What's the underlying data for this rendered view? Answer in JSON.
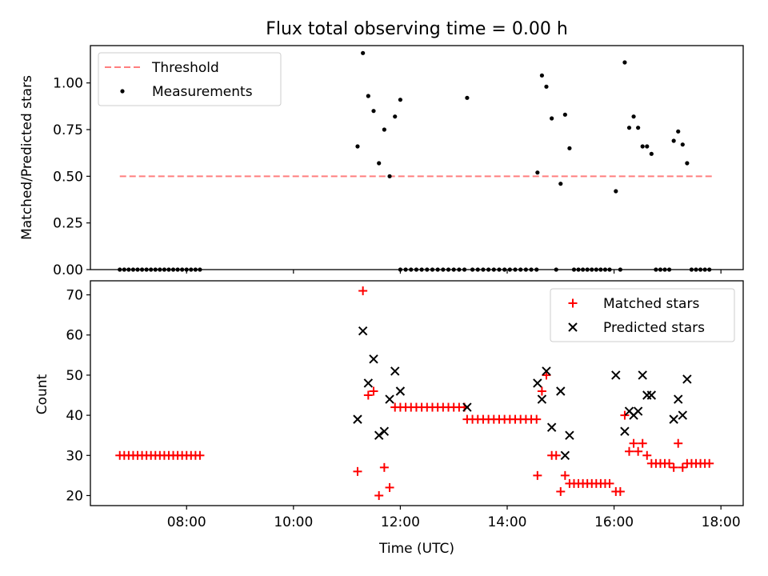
{
  "chart_data": [
    {
      "type": "scatter",
      "title": "Flux total observing time = 0.00 h",
      "xlabel": "",
      "ylabel": "Matched/Predicted stars",
      "ylim": [
        0.0,
        1.2
      ],
      "yticks": [
        "0.00",
        "0.25",
        "0.50",
        "0.75",
        "1.00"
      ],
      "xlim": [
        "06:12",
        "18:25"
      ],
      "legend_position": "upper left",
      "threshold": {
        "name": "Threshold",
        "value": 0.5,
        "x_range": [
          "06:45",
          "17:50"
        ],
        "color": "#ff7f7f",
        "style": "dashed"
      },
      "series": [
        {
          "name": "Measurements",
          "color": "#000000",
          "marker": "dot",
          "points": [
            [
              "06:45",
              0
            ],
            [
              "06:50",
              0
            ],
            [
              "06:55",
              0
            ],
            [
              "07:00",
              0
            ],
            [
              "07:05",
              0
            ],
            [
              "07:10",
              0
            ],
            [
              "07:15",
              0
            ],
            [
              "07:20",
              0
            ],
            [
              "07:25",
              0
            ],
            [
              "07:30",
              0
            ],
            [
              "07:35",
              0
            ],
            [
              "07:40",
              0
            ],
            [
              "07:45",
              0
            ],
            [
              "07:50",
              0
            ],
            [
              "07:55",
              0
            ],
            [
              "08:00",
              0
            ],
            [
              "08:05",
              0
            ],
            [
              "08:10",
              0
            ],
            [
              "08:15",
              0
            ],
            [
              "11:12",
              0.66
            ],
            [
              "11:18",
              1.16
            ],
            [
              "11:24",
              0.93
            ],
            [
              "11:30",
              0.85
            ],
            [
              "11:36",
              0.57
            ],
            [
              "11:42",
              0.75
            ],
            [
              "11:48",
              0.5
            ],
            [
              "11:54",
              0.82
            ],
            [
              "12:00",
              0.91
            ],
            [
              "12:00",
              0
            ],
            [
              "12:06",
              0
            ],
            [
              "12:12",
              0
            ],
            [
              "12:18",
              0
            ],
            [
              "12:24",
              0
            ],
            [
              "12:30",
              0
            ],
            [
              "12:36",
              0
            ],
            [
              "12:42",
              0
            ],
            [
              "12:48",
              0
            ],
            [
              "12:54",
              0
            ],
            [
              "13:00",
              0
            ],
            [
              "13:06",
              0
            ],
            [
              "13:12",
              0
            ],
            [
              "13:15",
              0.92
            ],
            [
              "13:21",
              0
            ],
            [
              "13:27",
              0
            ],
            [
              "13:33",
              0
            ],
            [
              "13:39",
              0
            ],
            [
              "13:45",
              0
            ],
            [
              "13:51",
              0
            ],
            [
              "13:57",
              0
            ],
            [
              "14:03",
              0
            ],
            [
              "14:09",
              0
            ],
            [
              "14:15",
              0
            ],
            [
              "14:21",
              0
            ],
            [
              "14:27",
              0
            ],
            [
              "14:33",
              0
            ],
            [
              "14:34",
              0.52
            ],
            [
              "14:39",
              1.04
            ],
            [
              "14:44",
              0.98
            ],
            [
              "14:50",
              0.81
            ],
            [
              "14:55",
              0
            ],
            [
              "15:00",
              0.46
            ],
            [
              "15:05",
              0.83
            ],
            [
              "15:10",
              0.65
            ],
            [
              "15:15",
              0
            ],
            [
              "15:20",
              0
            ],
            [
              "15:25",
              0
            ],
            [
              "15:30",
              0
            ],
            [
              "15:35",
              0
            ],
            [
              "15:40",
              0
            ],
            [
              "15:45",
              0
            ],
            [
              "15:50",
              0
            ],
            [
              "15:55",
              0
            ],
            [
              "16:02",
              0.42
            ],
            [
              "16:07",
              0
            ],
            [
              "16:12",
              1.11
            ],
            [
              "16:17",
              0.76
            ],
            [
              "16:22",
              0.82
            ],
            [
              "16:27",
              0.76
            ],
            [
              "16:32",
              0.66
            ],
            [
              "16:37",
              0.66
            ],
            [
              "16:42",
              0.62
            ],
            [
              "16:47",
              0
            ],
            [
              "16:52",
              0
            ],
            [
              "16:57",
              0
            ],
            [
              "17:02",
              0
            ],
            [
              "17:07",
              0.69
            ],
            [
              "17:12",
              0.74
            ],
            [
              "17:17",
              0.67
            ],
            [
              "17:22",
              0.57
            ],
            [
              "17:27",
              0
            ],
            [
              "17:32",
              0
            ],
            [
              "17:37",
              0
            ],
            [
              "17:42",
              0
            ],
            [
              "17:47",
              0
            ]
          ]
        }
      ]
    },
    {
      "type": "scatter",
      "title": "",
      "xlabel": "Time (UTC)",
      "ylabel": "Count",
      "ylim": [
        17.5,
        73.5
      ],
      "yticks": [
        "20",
        "30",
        "40",
        "50",
        "60",
        "70"
      ],
      "xlim": [
        "06:12",
        "18:25"
      ],
      "xticks": [
        "08:00",
        "10:00",
        "12:00",
        "14:00",
        "16:00",
        "18:00"
      ],
      "legend_position": "upper right",
      "series": [
        {
          "name": "Matched stars",
          "color": "#ff0000",
          "marker": "plus",
          "points": [
            [
              "06:45",
              30
            ],
            [
              "06:50",
              30
            ],
            [
              "06:55",
              30
            ],
            [
              "07:00",
              30
            ],
            [
              "07:05",
              30
            ],
            [
              "07:10",
              30
            ],
            [
              "07:15",
              30
            ],
            [
              "07:20",
              30
            ],
            [
              "07:25",
              30
            ],
            [
              "07:30",
              30
            ],
            [
              "07:35",
              30
            ],
            [
              "07:40",
              30
            ],
            [
              "07:45",
              30
            ],
            [
              "07:50",
              30
            ],
            [
              "07:55",
              30
            ],
            [
              "08:00",
              30
            ],
            [
              "08:05",
              30
            ],
            [
              "08:10",
              30
            ],
            [
              "08:15",
              30
            ],
            [
              "11:12",
              26
            ],
            [
              "11:18",
              71
            ],
            [
              "11:24",
              45
            ],
            [
              "11:30",
              46
            ],
            [
              "11:36",
              20
            ],
            [
              "11:42",
              27
            ],
            [
              "11:48",
              22
            ],
            [
              "11:54",
              42
            ],
            [
              "12:00",
              42
            ],
            [
              "12:06",
              42
            ],
            [
              "12:12",
              42
            ],
            [
              "12:18",
              42
            ],
            [
              "12:24",
              42
            ],
            [
              "12:30",
              42
            ],
            [
              "12:36",
              42
            ],
            [
              "12:42",
              42
            ],
            [
              "12:48",
              42
            ],
            [
              "12:54",
              42
            ],
            [
              "13:00",
              42
            ],
            [
              "13:06",
              42
            ],
            [
              "13:12",
              42
            ],
            [
              "13:15",
              39
            ],
            [
              "13:21",
              39
            ],
            [
              "13:27",
              39
            ],
            [
              "13:33",
              39
            ],
            [
              "13:39",
              39
            ],
            [
              "13:45",
              39
            ],
            [
              "13:51",
              39
            ],
            [
              "13:57",
              39
            ],
            [
              "14:03",
              39
            ],
            [
              "14:09",
              39
            ],
            [
              "14:15",
              39
            ],
            [
              "14:21",
              39
            ],
            [
              "14:27",
              39
            ],
            [
              "14:33",
              39
            ],
            [
              "14:34",
              25
            ],
            [
              "14:39",
              46
            ],
            [
              "14:44",
              50
            ],
            [
              "14:50",
              30
            ],
            [
              "14:55",
              30
            ],
            [
              "15:00",
              21
            ],
            [
              "15:05",
              25
            ],
            [
              "15:10",
              23
            ],
            [
              "15:15",
              23
            ],
            [
              "15:20",
              23
            ],
            [
              "15:25",
              23
            ],
            [
              "15:30",
              23
            ],
            [
              "15:35",
              23
            ],
            [
              "15:40",
              23
            ],
            [
              "15:45",
              23
            ],
            [
              "15:50",
              23
            ],
            [
              "15:55",
              23
            ],
            [
              "16:02",
              21
            ],
            [
              "16:07",
              21
            ],
            [
              "16:12",
              40
            ],
            [
              "16:17",
              31
            ],
            [
              "16:22",
              33
            ],
            [
              "16:27",
              31
            ],
            [
              "16:32",
              33
            ],
            [
              "16:37",
              30
            ],
            [
              "16:42",
              28
            ],
            [
              "16:47",
              28
            ],
            [
              "16:52",
              28
            ],
            [
              "16:57",
              28
            ],
            [
              "17:02",
              28
            ],
            [
              "17:07",
              27
            ],
            [
              "17:12",
              33
            ],
            [
              "17:17",
              27
            ],
            [
              "17:22",
              28
            ],
            [
              "17:27",
              28
            ],
            [
              "17:32",
              28
            ],
            [
              "17:37",
              28
            ],
            [
              "17:42",
              28
            ],
            [
              "17:47",
              28
            ]
          ]
        },
        {
          "name": "Predicted stars",
          "color": "#000000",
          "marker": "x",
          "points": [
            [
              "11:12",
              39
            ],
            [
              "11:18",
              61
            ],
            [
              "11:24",
              48
            ],
            [
              "11:30",
              54
            ],
            [
              "11:36",
              35
            ],
            [
              "11:42",
              36
            ],
            [
              "11:48",
              44
            ],
            [
              "11:54",
              51
            ],
            [
              "12:00",
              46
            ],
            [
              "13:15",
              42
            ],
            [
              "14:34",
              48
            ],
            [
              "14:39",
              44
            ],
            [
              "14:44",
              51
            ],
            [
              "14:50",
              37
            ],
            [
              "15:00",
              46
            ],
            [
              "15:05",
              30
            ],
            [
              "15:10",
              35
            ],
            [
              "16:02",
              50
            ],
            [
              "16:12",
              36
            ],
            [
              "16:17",
              41
            ],
            [
              "16:22",
              40
            ],
            [
              "16:27",
              41
            ],
            [
              "16:32",
              50
            ],
            [
              "16:37",
              45
            ],
            [
              "16:42",
              45
            ],
            [
              "17:07",
              39
            ],
            [
              "17:12",
              44
            ],
            [
              "17:17",
              40
            ],
            [
              "17:22",
              49
            ]
          ]
        }
      ]
    }
  ]
}
